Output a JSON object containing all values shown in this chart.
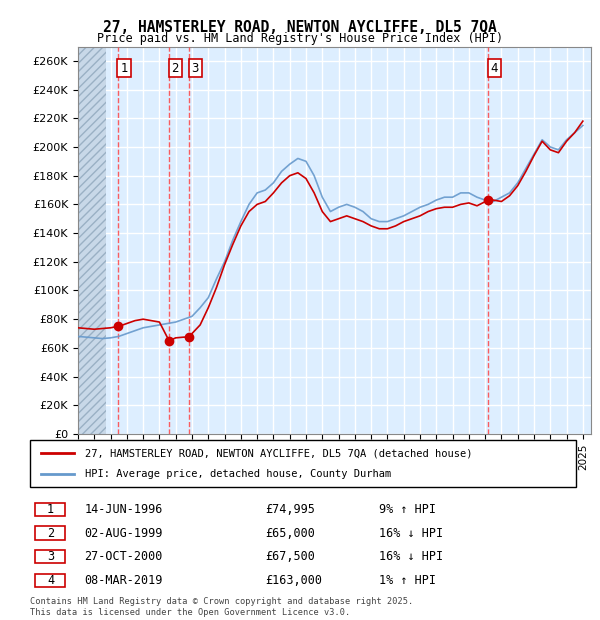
{
  "title": "27, HAMSTERLEY ROAD, NEWTON AYCLIFFE, DL5 7QA",
  "subtitle": "Price paid vs. HM Land Registry's House Price Index (HPI)",
  "legend_line1": "27, HAMSTERLEY ROAD, NEWTON AYCLIFFE, DL5 7QA (detached house)",
  "legend_line2": "HPI: Average price, detached house, County Durham",
  "footer": "Contains HM Land Registry data © Crown copyright and database right 2025.\nThis data is licensed under the Open Government Licence v3.0.",
  "transactions": [
    {
      "num": 1,
      "date": "14-JUN-1996",
      "price": 74995,
      "pct": "9%",
      "dir": "↑",
      "x": 1996.45
    },
    {
      "num": 2,
      "date": "02-AUG-1999",
      "price": 65000,
      "pct": "16%",
      "dir": "↓",
      "x": 1999.59
    },
    {
      "num": 3,
      "date": "27-OCT-2000",
      "price": 67500,
      "pct": "16%",
      "dir": "↓",
      "x": 2000.82
    },
    {
      "num": 4,
      "date": "08-MAR-2019",
      "price": 163000,
      "pct": "1%",
      "dir": "↑",
      "x": 2019.19
    }
  ],
  "row_hpi": [
    "9% ↑ HPI",
    "16% ↓ HPI",
    "16% ↓ HPI",
    "1% ↑ HPI"
  ],
  "red_line_color": "#cc0000",
  "blue_line_color": "#6699cc",
  "background_color": "#ddeeff",
  "grid_color": "#ffffff",
  "vline_color": "#ff4444",
  "marker_color": "#cc0000",
  "ylim": [
    0,
    270000
  ],
  "xmin": 1994.0,
  "xmax": 2025.5
}
